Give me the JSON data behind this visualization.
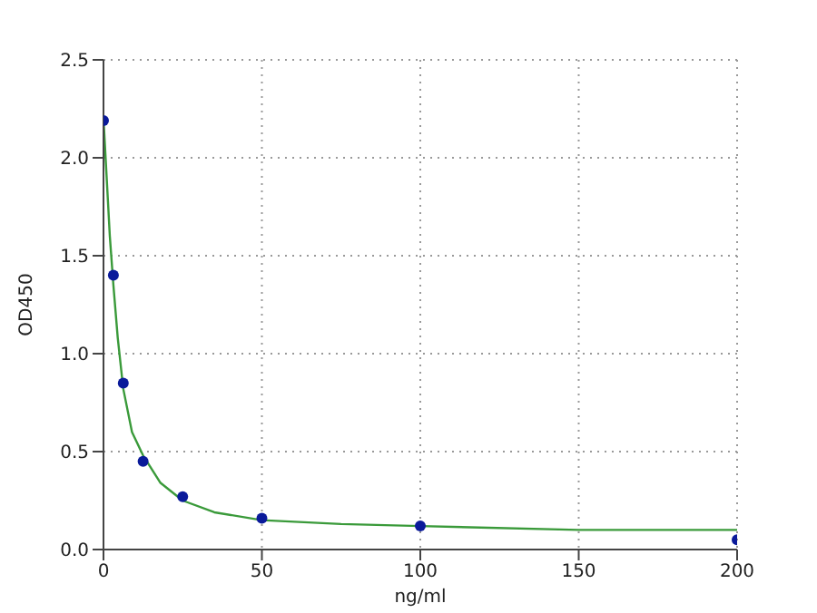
{
  "chart_data": {
    "type": "scatter",
    "xlabel": "ng/ml",
    "ylabel": "OD450",
    "xlim": [
      0,
      200
    ],
    "xticks": [
      0,
      50,
      100,
      150,
      200
    ],
    "ylim": [
      0,
      2.5
    ],
    "yticks": [
      {
        "value": 0,
        "label": "0.0"
      },
      0.5,
      {
        "value": 1,
        "label": "1.0"
      },
      1.5,
      {
        "value": 2,
        "label": "2.0"
      },
      2.5
    ],
    "grid": true,
    "marker": "circle",
    "series": [
      {
        "color": "#0a1a9a",
        "x": [
          0,
          3.125,
          6.25,
          12.5,
          25,
          50,
          100,
          200
        ],
        "values": [
          2.19,
          1.4,
          0.85,
          0.45,
          0.27,
          0.16,
          0.12,
          0.05
        ]
      },
      {
        "type": "line",
        "color": "#3a9a3a",
        "marker": "none",
        "x": [
          0,
          1,
          2,
          3.125,
          4.5,
          6.25,
          9,
          12.5,
          18,
          25,
          35,
          50,
          75,
          100,
          150,
          200
        ],
        "values": [
          2.2,
          1.9,
          1.6,
          1.35,
          1.08,
          0.82,
          0.6,
          0.48,
          0.34,
          0.25,
          0.19,
          0.15,
          0.13,
          0.12,
          0.1,
          0.1
        ]
      }
    ]
  }
}
